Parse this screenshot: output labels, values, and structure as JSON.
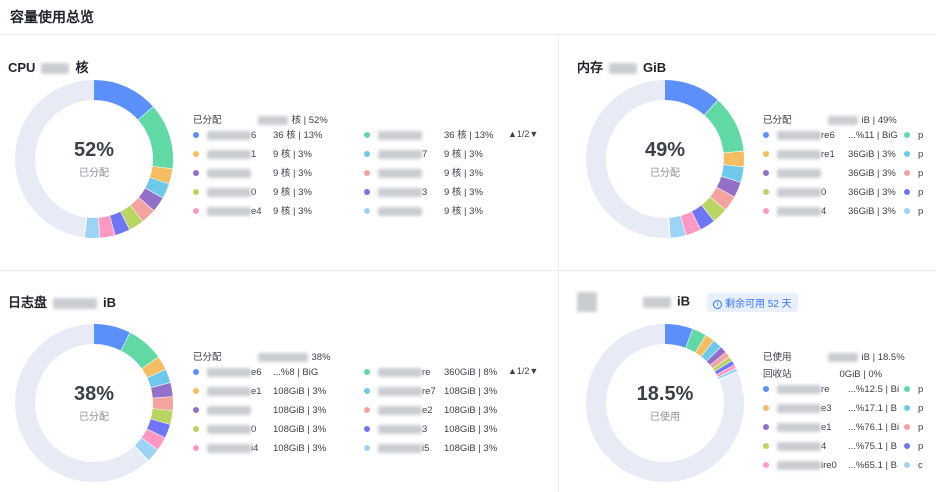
{
  "page_title": "容量使用总览",
  "colors": [
    "#5b8ff9",
    "#61d9a5",
    "#f6bd60",
    "#6dc8ec",
    "#9270ca",
    "#f4a49e",
    "#b8d562",
    "#6f76f5",
    "#ff99c3",
    "#9dd3f5"
  ],
  "panels": [
    {
      "title_prefix": "CPU",
      "title_suffix": "核",
      "center_value": "52%",
      "center_label": "已分配",
      "used_fraction": 0.52,
      "summary_label": "已分配",
      "summary_value": "核 | 52%",
      "pager": "▲1/2▼",
      "slices": [
        13,
        13,
        3,
        3,
        3,
        3,
        3,
        3,
        3,
        3
      ],
      "legend_left": [
        {
          "suffix": "6",
          "value": "36 核 | 13%"
        },
        {
          "suffix": "1",
          "value": "9 核 | 3%"
        },
        {
          "suffix": "",
          "value": "9 核 | 3%"
        },
        {
          "suffix": "0",
          "value": "9 核 | 3%"
        },
        {
          "suffix": "e4",
          "value": "9 核 | 3%"
        }
      ],
      "legend_right": [
        {
          "suffix": "",
          "value": "36 核 | 13%"
        },
        {
          "suffix": "7",
          "value": "9 核 | 3%"
        },
        {
          "suffix": "",
          "value": "9 核 | 3%"
        },
        {
          "suffix": "3",
          "value": "9 核 | 3%"
        },
        {
          "suffix": "",
          "value": "9 核 | 3%"
        }
      ]
    },
    {
      "title_prefix": "内存",
      "title_suffix": "GiB",
      "center_value": "49%",
      "center_label": "已分配",
      "used_fraction": 0.49,
      "summary_label": "已分配",
      "summary_value": "iB | 49%",
      "slices": [
        11,
        11,
        3,
        3,
        3,
        3,
        3,
        3,
        3,
        3
      ],
      "legend_left": [
        {
          "suffix": "re6",
          "value": "...%11 | BiG"
        },
        {
          "suffix": "re1",
          "value": "36GiB | 3%"
        },
        {
          "suffix": "",
          "value": "36GiB | 3%"
        },
        {
          "suffix": "0",
          "value": "36GiB | 3%"
        },
        {
          "suffix": "4",
          "value": "36GiB | 3%"
        }
      ],
      "legend_right": [
        {
          "suffix": "p",
          "value": ""
        },
        {
          "suffix": "p",
          "value": ""
        },
        {
          "suffix": "p",
          "value": ""
        },
        {
          "suffix": "p",
          "value": ""
        },
        {
          "suffix": "p",
          "value": ""
        }
      ]
    },
    {
      "title_prefix": "日志盘",
      "title_suffix": "iB",
      "center_value": "38%",
      "center_label": "已分配",
      "used_fraction": 0.38,
      "summary_label": "已分配",
      "summary_value": "38%",
      "pager": "▲1/2▼",
      "slices": [
        8,
        8,
        3,
        3,
        3,
        3,
        3,
        3,
        3,
        3
      ],
      "legend_left": [
        {
          "suffix": "e6",
          "value": "...%8 | BiG"
        },
        {
          "suffix": "e1",
          "value": "108GiB | 3%"
        },
        {
          "suffix": "",
          "value": "108GiB | 3%"
        },
        {
          "suffix": "0",
          "value": "108GiB | 3%"
        },
        {
          "suffix": "i4",
          "value": "108GiB | 3%"
        }
      ],
      "legend_right": [
        {
          "suffix": "re",
          "value": "360GiB | 8%"
        },
        {
          "suffix": "re7",
          "value": "108GiB | 3%"
        },
        {
          "suffix": "e2",
          "value": "108GiB | 3%"
        },
        {
          "suffix": "3",
          "value": "108GiB | 3%"
        },
        {
          "suffix": "i5",
          "value": "108GiB | 3%"
        }
      ]
    },
    {
      "title_prefix": "",
      "title_suffix": "iB",
      "badge": "剩余可用 52 天",
      "center_value": "18.5%",
      "center_label": "已使用",
      "used_fraction": 0.185,
      "summary_label": "已使用",
      "summary_value": "iB | 18.5%",
      "recycle_label": "回收站",
      "recycle_value": "0GiB | 0%",
      "slices": [
        6,
        3,
        2,
        2,
        1.5,
        1.2,
        1,
        1,
        0.8,
        0.7
      ],
      "legend_left": [
        {
          "suffix": "re",
          "value": "...%12.5 | Bi"
        },
        {
          "suffix": "e3",
          "value": "...%17.1 | B"
        },
        {
          "suffix": "e1",
          "value": "...%76.1 | Bi"
        },
        {
          "suffix": "4",
          "value": "...%75.1 | B"
        },
        {
          "suffix": "ire0",
          "value": "...%65.1 | B"
        }
      ],
      "legend_right": [
        {
          "suffix": "p",
          "value": ""
        },
        {
          "suffix": "p",
          "value": ""
        },
        {
          "suffix": "p",
          "value": ""
        },
        {
          "suffix": "p",
          "value": ""
        },
        {
          "suffix": "c",
          "value": ""
        }
      ]
    }
  ]
}
